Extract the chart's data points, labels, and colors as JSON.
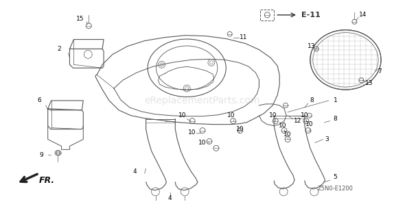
{
  "background_color": "#ffffff",
  "line_color": "#555555",
  "dark_color": "#333333",
  "text_color": "#000000",
  "watermark_text": "eReplacementParts.com",
  "watermark_color": "#c8c8c8",
  "watermark_fontsize": 10,
  "e11_text": "E-11",
  "fr_text": "FR.",
  "ref_text": "Z5N0-E1200",
  "label_fontsize": 6.5,
  "ref_fontsize": 6,
  "e11_fontsize": 8
}
